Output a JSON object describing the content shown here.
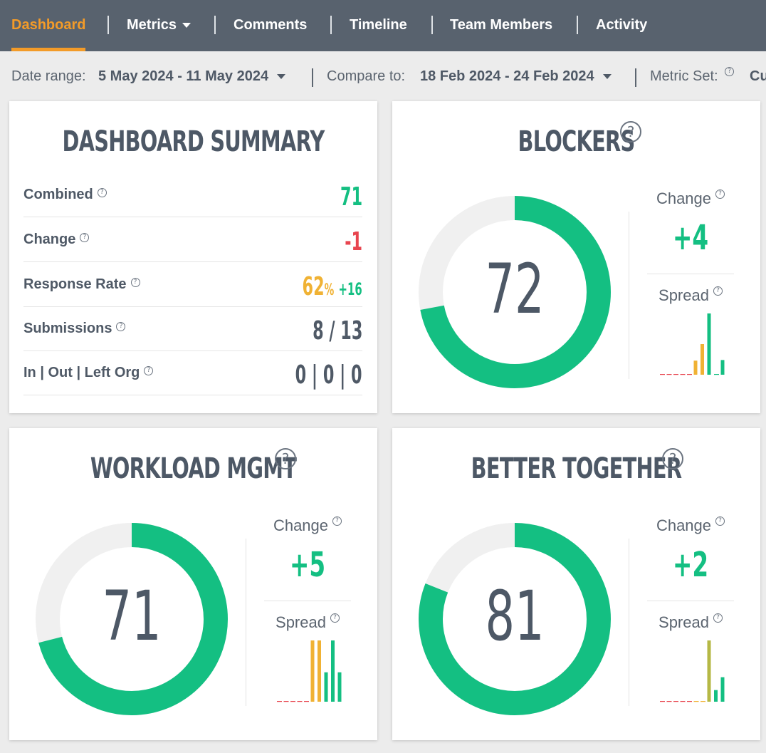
{
  "nav": {
    "items": [
      {
        "label": "Dashboard",
        "active": true,
        "dropdown": false
      },
      {
        "label": "Metrics",
        "active": false,
        "dropdown": true
      },
      {
        "label": "Comments",
        "active": false,
        "dropdown": false
      },
      {
        "label": "Timeline",
        "active": false,
        "dropdown": false
      },
      {
        "label": "Team Members",
        "active": false,
        "dropdown": false
      },
      {
        "label": "Activity",
        "active": false,
        "dropdown": false
      }
    ]
  },
  "filters": {
    "date_range_label": "Date range:",
    "date_range_value": "5 May 2024 - 11 May 2024",
    "compare_label": "Compare to:",
    "compare_value": "18 Feb 2024 - 24 Feb 2024",
    "metric_set_label": "Metric Set:",
    "metric_set_value": "Cu"
  },
  "summary": {
    "title": "DASHBOARD SUMMARY",
    "rows": [
      {
        "label": "Combined",
        "value": "71",
        "status": "pos"
      },
      {
        "label": "Change",
        "value": "-1",
        "status": "neg"
      },
      {
        "label": "Response Rate",
        "value": "62",
        "unit": "%",
        "delta": "+16",
        "status": "warn"
      },
      {
        "label": "Submissions",
        "value": "8 / 13",
        "status": "dark"
      },
      {
        "label": "In | Out | Left Org",
        "value": "0 | 0 | 0",
        "status": "dark"
      }
    ]
  },
  "metrics": [
    {
      "title": "BLOCKERS",
      "score": 72,
      "change_label": "Change",
      "change_value": "+4",
      "spread_label": "Spread",
      "spread": [
        {
          "v": 0,
          "c": "red"
        },
        {
          "v": 0,
          "c": "red"
        },
        {
          "v": 0,
          "c": "red"
        },
        {
          "v": 0,
          "c": "red"
        },
        {
          "v": 0,
          "c": "red"
        },
        {
          "v": 0.23,
          "c": "yellow"
        },
        {
          "v": 0.5,
          "c": "yellow"
        },
        {
          "v": 1.0,
          "c": "green"
        },
        {
          "v": 0,
          "c": "green"
        },
        {
          "v": 0.24,
          "c": "green"
        }
      ]
    },
    {
      "title": "WORKLOAD MGMT",
      "score": 71,
      "change_label": "Change",
      "change_value": "+5",
      "spread_label": "Spread",
      "spread": [
        {
          "v": 0,
          "c": "red"
        },
        {
          "v": 0,
          "c": "red"
        },
        {
          "v": 0,
          "c": "red"
        },
        {
          "v": 0,
          "c": "red"
        },
        {
          "v": 0,
          "c": "red"
        },
        {
          "v": 1.0,
          "c": "yellow"
        },
        {
          "v": 1.0,
          "c": "yellow"
        },
        {
          "v": 0.48,
          "c": "green"
        },
        {
          "v": 1.0,
          "c": "green"
        },
        {
          "v": 0.48,
          "c": "green"
        }
      ]
    },
    {
      "title": "BETTER TOGETHER",
      "score": 81,
      "change_label": "Change",
      "change_value": "+2",
      "spread_label": "Spread",
      "spread": [
        {
          "v": 0,
          "c": "red"
        },
        {
          "v": 0,
          "c": "red"
        },
        {
          "v": 0,
          "c": "red"
        },
        {
          "v": 0,
          "c": "red"
        },
        {
          "v": 0,
          "c": "red"
        },
        {
          "v": 0,
          "c": "yellow"
        },
        {
          "v": 0,
          "c": "yellow"
        },
        {
          "v": 1.0,
          "c": "olive"
        },
        {
          "v": 0.19,
          "c": "green"
        },
        {
          "v": 0.4,
          "c": "green"
        }
      ]
    }
  ],
  "colors": {
    "accent": "#f39b28",
    "nav_bg": "#58626e",
    "positive": "#14bf82",
    "negative": "#e8454f",
    "warning": "#f0b234",
    "olive": "#b5b845",
    "ring_bg": "#f0f0f0"
  }
}
